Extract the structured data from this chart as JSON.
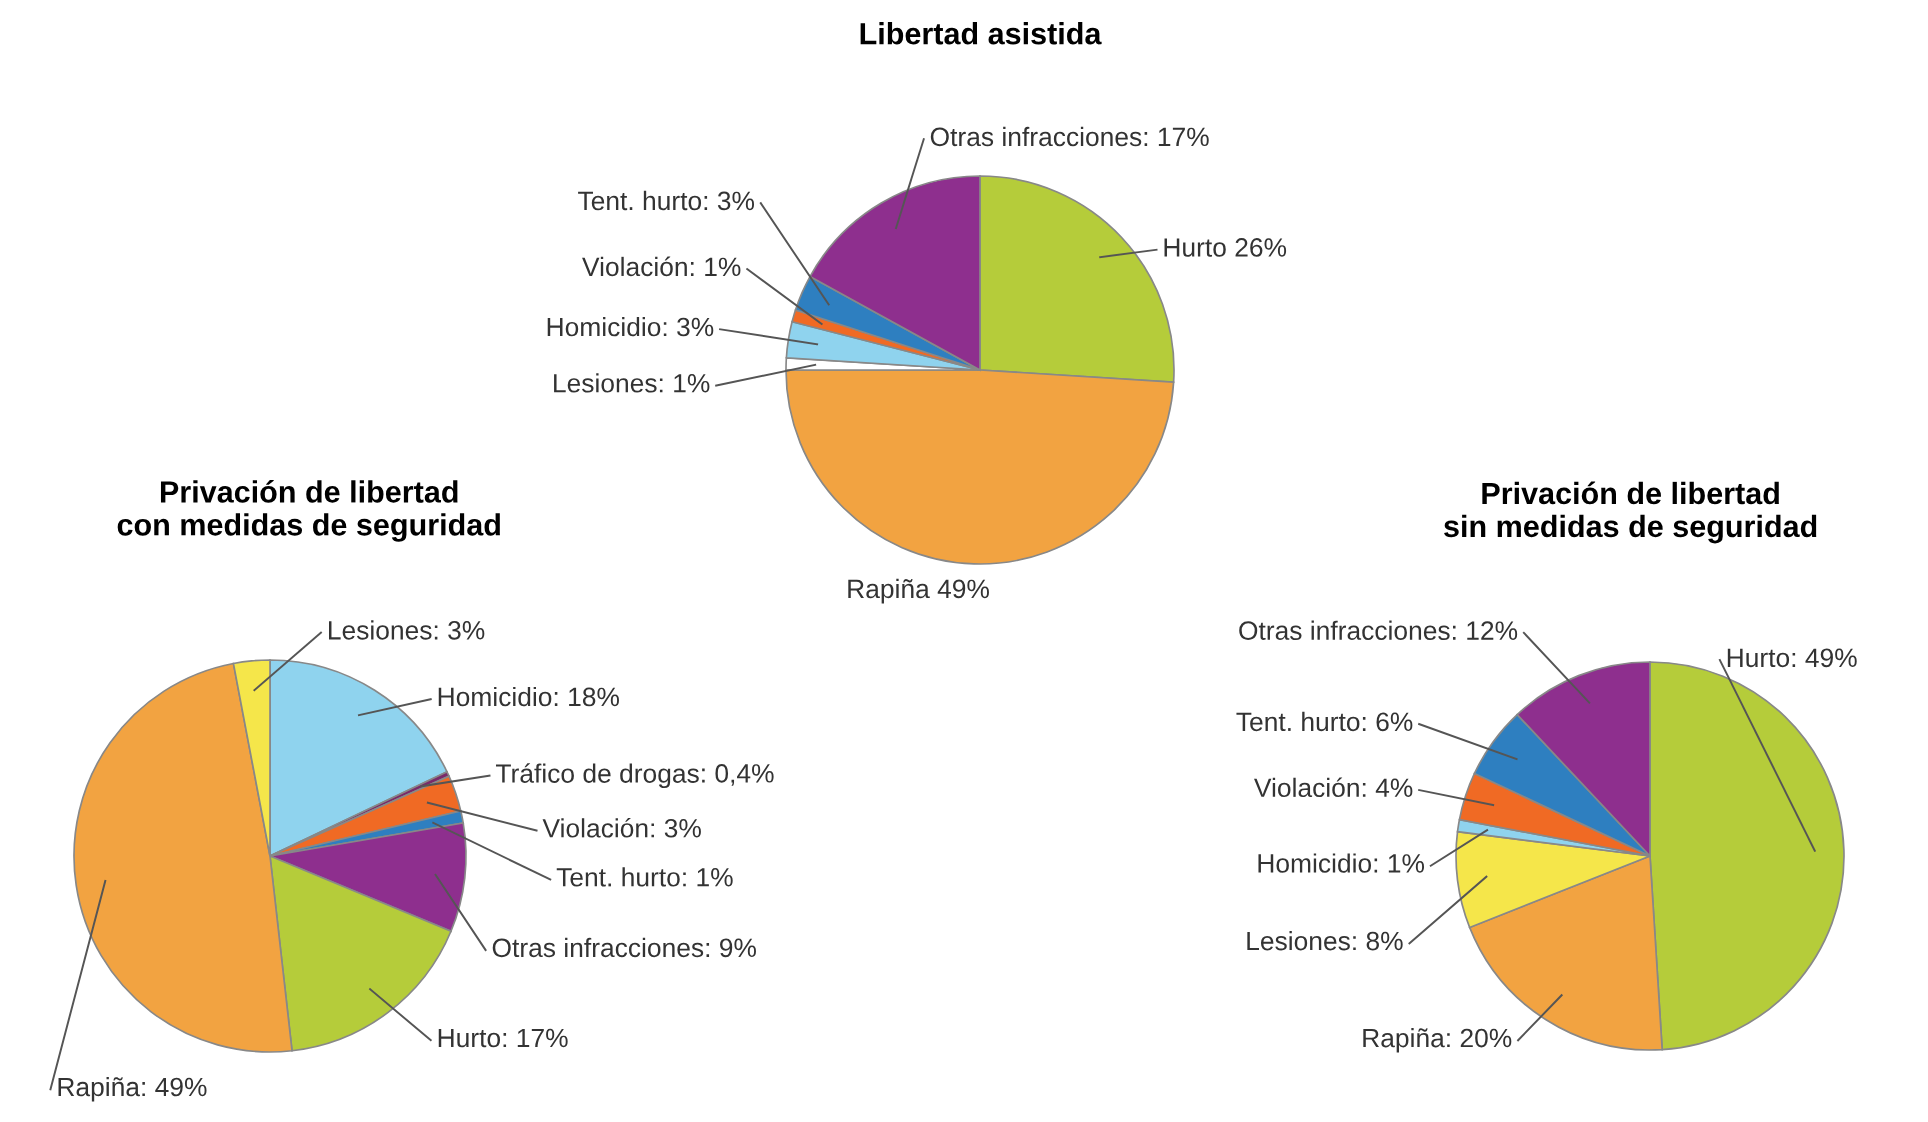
{
  "chart_data": [
    {
      "type": "pie",
      "title": "Libertad asistida",
      "categories": [
        "Hurto",
        "Rapiña",
        "Lesiones",
        "Homicidio",
        "Violación",
        "Tent. hurto",
        "Otras infracciones"
      ],
      "values": [
        26,
        49,
        1,
        3,
        1,
        3,
        17
      ],
      "colors": [
        "#b5cc3a",
        "#f2a341",
        "#ffffff",
        "#8fd3ee",
        "#f06a24",
        "#2e7fc0",
        "#8e2f8e"
      ],
      "value_labels": [
        " 26%",
        " 49%",
        ": 1%",
        ": 3%",
        ": 1%",
        ": 3%",
        ": 17%"
      ]
    },
    {
      "type": "pie",
      "title": "Privación de libertad\ncon medidas de seguridad",
      "categories": [
        "Homicidio",
        "Tráfico de drogas",
        "Violación",
        "Tent. hurto",
        "Otras infracciones",
        "Hurto",
        "Rapiña",
        "Lesiones"
      ],
      "values": [
        18,
        0.4,
        3,
        1,
        9,
        17,
        49,
        3
      ],
      "colors": [
        "#8fd3ee",
        "#7a2a6a",
        "#f06a24",
        "#2e7fc0",
        "#8e2f8e",
        "#b5cc3a",
        "#f2a341",
        "#f5e64a"
      ],
      "value_labels": [
        ": 18%",
        ": 0,4%",
        ": 3%",
        ": 1%",
        ": 9%",
        ": 17%",
        ": 49%",
        ": 3%"
      ]
    },
    {
      "type": "pie",
      "title": "Privación de libertad\nsin medidas de seguridad",
      "categories": [
        "Hurto",
        "Rapiña",
        "Lesiones",
        "Homicidio",
        "Violación",
        "Tent. hurto",
        "Otras infracciones"
      ],
      "values": [
        49,
        20,
        8,
        1,
        4,
        6,
        12
      ],
      "colors": [
        "#b5cc3a",
        "#f2a341",
        "#f5e64a",
        "#8fd3ee",
        "#f06a24",
        "#2e7fc0",
        "#8e2f8e"
      ],
      "value_labels": [
        ": 49%",
        ": 20%",
        ": 8%",
        ": 1%",
        ": 4%",
        ": 6%",
        ": 12%"
      ]
    }
  ]
}
